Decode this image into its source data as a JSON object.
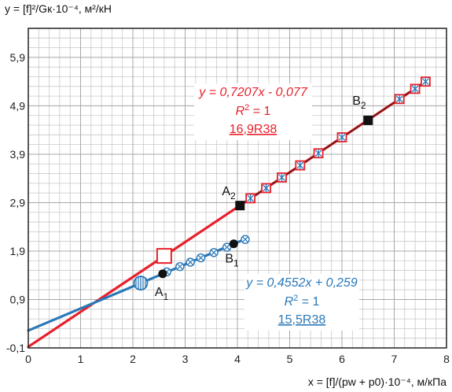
{
  "chart_data": {
    "type": "scatter",
    "y_axis_title": "y = [f]²/Gк·10⁻⁴, м²/кН",
    "x_axis_title": "x = [f]/(pw + p0)·10⁻⁴, м/кПа",
    "xlim": [
      0,
      8
    ],
    "ylim": [
      -0.1,
      6.5
    ],
    "x_ticks": [
      0,
      1,
      2,
      3,
      4,
      5,
      6,
      7,
      8
    ],
    "x_tick_labels": [
      "0",
      "1",
      "2",
      "3",
      "4",
      "5",
      "6",
      "7",
      "8"
    ],
    "y_ticks": [
      -0.1,
      0.9,
      1.9,
      2.9,
      3.9,
      4.9,
      5.9
    ],
    "y_tick_labels": [
      "-0,1",
      "0,9",
      "1,9",
      "2,9",
      "3,9",
      "4,9",
      "5,9"
    ],
    "grid": true,
    "colors": {
      "red": "#e8202a",
      "blue": "#2a78b8",
      "black": "#111111",
      "dark_line": "#5a1a1a"
    },
    "series": [
      {
        "color": "#e8202a",
        "line": {
          "slope": 0.7207,
          "intercept": -0.077,
          "x_range": [
            0,
            7.65
          ]
        },
        "points": [
          {
            "x": 2.6,
            "y": 1.8,
            "marker": "open-square-large"
          },
          {
            "x": 4.25,
            "y": 2.99,
            "marker": "square-star"
          },
          {
            "x": 4.55,
            "y": 3.2,
            "marker": "square-star"
          },
          {
            "x": 4.85,
            "y": 3.42,
            "marker": "square-star"
          },
          {
            "x": 5.2,
            "y": 3.67,
            "marker": "square-star"
          },
          {
            "x": 5.55,
            "y": 3.92,
            "marker": "square-star"
          },
          {
            "x": 6.0,
            "y": 4.25,
            "marker": "square-star"
          },
          {
            "x": 7.1,
            "y": 5.04,
            "marker": "square-star"
          },
          {
            "x": 7.4,
            "y": 5.25,
            "marker": "square-star"
          },
          {
            "x": 7.6,
            "y": 5.4,
            "marker": "square-star"
          }
        ],
        "annotation": {
          "equation": "y = 0,7207x - 0,077",
          "r2_prefix": "R",
          "r2_exp": "2",
          "r2_suffix": " = 1",
          "label": "16,9R38"
        }
      },
      {
        "color": "#2a78b8",
        "line": {
          "slope": 0.4552,
          "intercept": 0.259,
          "x_range": [
            0,
            4.15
          ]
        },
        "points": [
          {
            "x": 2.15,
            "y": 1.24,
            "marker": "hatched-circle-large"
          },
          {
            "x": 2.65,
            "y": 1.47,
            "marker": "circle-x"
          },
          {
            "x": 2.9,
            "y": 1.58,
            "marker": "circle-x"
          },
          {
            "x": 3.1,
            "y": 1.67,
            "marker": "circle-x"
          },
          {
            "x": 3.3,
            "y": 1.76,
            "marker": "circle-x"
          },
          {
            "x": 3.55,
            "y": 1.87,
            "marker": "circle-x"
          },
          {
            "x": 3.8,
            "y": 1.98,
            "marker": "circle-x"
          },
          {
            "x": 4.15,
            "y": 2.14,
            "marker": "circle-x"
          }
        ],
        "annotation": {
          "equation": "y = 0,4552x + 0,259",
          "r2_prefix": "R",
          "r2_exp": "2",
          "r2_suffix": " = 1",
          "label": "15,5R38"
        }
      }
    ],
    "labeled_points": [
      {
        "base": "A",
        "sub": "1",
        "x": 2.57,
        "y": 1.43,
        "marker": "filled-circle"
      },
      {
        "base": "B",
        "sub": "1",
        "x": 3.93,
        "y": 2.05,
        "marker": "filled-circle"
      },
      {
        "base": "A",
        "sub": "2",
        "x": 4.05,
        "y": 2.84,
        "marker": "filled-square"
      },
      {
        "base": "B",
        "sub": "2",
        "x": 6.5,
        "y": 4.6,
        "marker": "filled-square"
      }
    ]
  }
}
